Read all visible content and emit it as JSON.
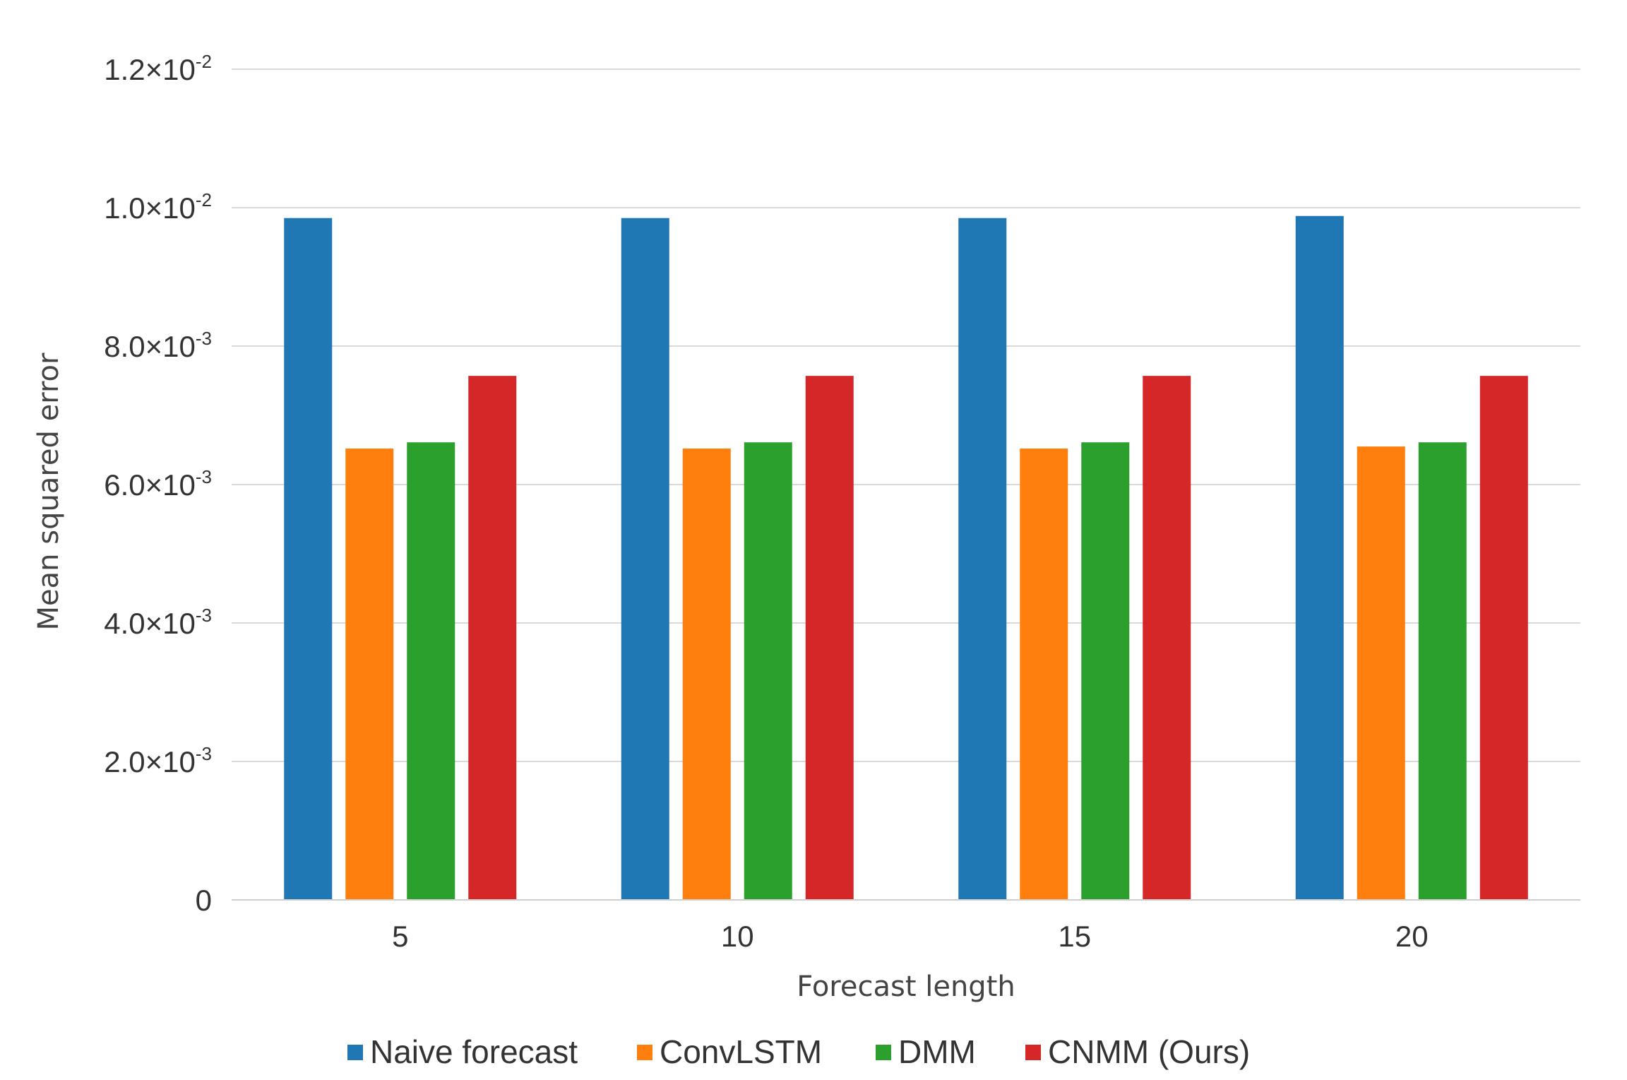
{
  "chart_data": {
    "type": "bar",
    "title": "",
    "xlabel": "Forecast length",
    "ylabel": "Mean squared error",
    "ylim": [
      0,
      0.012
    ],
    "grid": true,
    "legend_position": "bottom",
    "categories": [
      "5",
      "10",
      "15",
      "20"
    ],
    "y_ticks": [
      {
        "value": 0,
        "mantissa": "0",
        "exponent": ""
      },
      {
        "value": 0.002,
        "mantissa": "2.0×10",
        "exponent": "-3"
      },
      {
        "value": 0.004,
        "mantissa": "4.0×10",
        "exponent": "-3"
      },
      {
        "value": 0.006,
        "mantissa": "6.0×10",
        "exponent": "-3"
      },
      {
        "value": 0.008,
        "mantissa": "8.0×10",
        "exponent": "-3"
      },
      {
        "value": 0.01,
        "mantissa": "1.0×10",
        "exponent": "-2"
      },
      {
        "value": 0.012,
        "mantissa": "1.2×10",
        "exponent": "-2"
      }
    ],
    "series": [
      {
        "name": "Naive forecast",
        "color": "#1f77b4",
        "values": [
          0.00985,
          0.00985,
          0.00985,
          0.00988
        ]
      },
      {
        "name": "ConvLSTM",
        "color": "#ff7f0e",
        "values": [
          0.00652,
          0.00652,
          0.00652,
          0.00655
        ]
      },
      {
        "name": "DMM",
        "color": "#2ca02c",
        "values": [
          0.00661,
          0.00661,
          0.00661,
          0.00661
        ]
      },
      {
        "name": "CNMM (Ours)",
        "color": "#d62728",
        "values": [
          0.00757,
          0.00757,
          0.00757,
          0.00757
        ]
      }
    ]
  }
}
